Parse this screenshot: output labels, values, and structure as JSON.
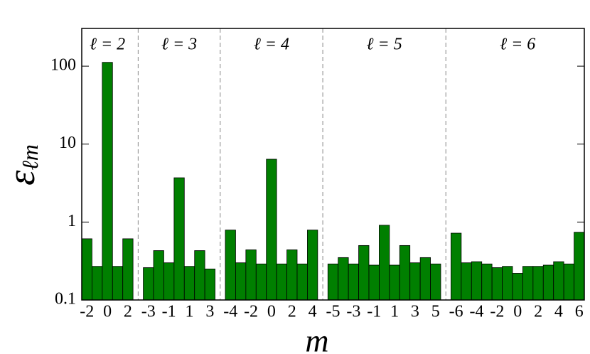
{
  "chart_data": {
    "type": "bar",
    "log_y": true,
    "color": "#007f00",
    "ylim": [
      0.1,
      305
    ],
    "yticks": [
      0.1,
      1,
      10,
      100
    ],
    "xlabel": "m",
    "ylabel": "ε",
    "ylabel_sub": "ℓm",
    "groups": [
      {
        "label": "ℓ = 2",
        "categories": [
          -2,
          null,
          0,
          null,
          2
        ],
        "values": [
          0.61,
          0.27,
          112,
          0.27,
          0.61
        ]
      },
      {
        "label": "ℓ = 3",
        "categories": [
          -3,
          null,
          -1,
          null,
          1,
          null,
          3
        ],
        "values": [
          0.26,
          0.43,
          0.3,
          3.7,
          0.27,
          0.43,
          0.25
        ]
      },
      {
        "label": "ℓ = 4",
        "categories": [
          -4,
          null,
          -2,
          null,
          0,
          null,
          2,
          null,
          4
        ],
        "values": [
          0.79,
          0.3,
          0.44,
          0.29,
          6.4,
          0.29,
          0.44,
          0.29,
          0.79
        ]
      },
      {
        "label": "ℓ = 5",
        "categories": [
          -5,
          null,
          -3,
          null,
          -1,
          null,
          1,
          null,
          3,
          null,
          5
        ],
        "values": [
          0.29,
          0.35,
          0.29,
          0.5,
          0.28,
          0.91,
          0.28,
          0.5,
          0.3,
          0.35,
          0.29
        ]
      },
      {
        "label": "ℓ = 6",
        "categories": [
          -6,
          null,
          -4,
          null,
          -2,
          null,
          0,
          null,
          2,
          null,
          4,
          null,
          6
        ],
        "values": [
          0.72,
          0.3,
          0.31,
          0.29,
          0.26,
          0.27,
          0.22,
          0.27,
          0.27,
          0.28,
          0.31,
          0.29,
          0.74
        ]
      }
    ]
  }
}
